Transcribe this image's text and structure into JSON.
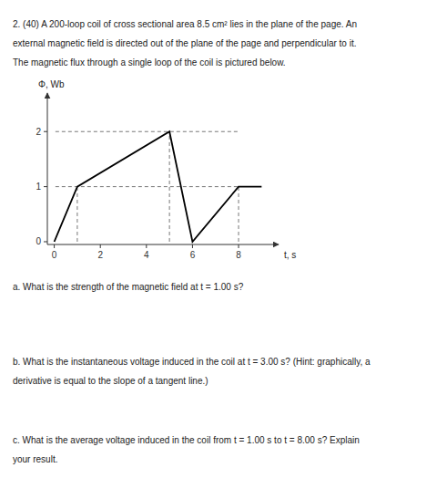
{
  "chart_data": {
    "type": "line",
    "annotations": [
      "2. (40) A 200-loop coil of cross sectional area 8.5 cm² lies in the plane of the page. An",
      "external magnetic field is directed out of the plane of the page and perpendicular to it.",
      "The magnetic flux through a single loop of the coil is pictured below.",
      "a. What is the strength of the magnetic field at t = 1.00 s?",
      "b. What is the instantaneous voltage induced in the coil at t = 3.00 s? (Hint: graphically, a",
      "derivative is equal to the slope of a tangent line.)",
      "c. What is the average voltage induced in the coil from t = 1.00 s to t = 8.00 s? Explain",
      "your result."
    ],
    "x_label": "t, s",
    "y_label": "Φ, Wb",
    "x": [
      0,
      1,
      5,
      6,
      8,
      9
    ],
    "values": [
      0,
      1,
      2,
      0,
      1,
      1
    ],
    "color": "#000000",
    "h_lines": [
      {
        "y": 2,
        "x_start": 0.05,
        "x_end": 8.0,
        "color": "#777777",
        "line_style": "dashed"
      },
      {
        "y": 1,
        "x_start": 0.05,
        "x_end": 8.0,
        "color": "#777777",
        "line_style": "dashed"
      }
    ],
    "v_lines": [
      {
        "x": 1,
        "y_start": 0,
        "y_end": 1,
        "color": "#777777",
        "line_style": "dashed"
      },
      {
        "x": 5,
        "y_start": 0,
        "y_end": 2,
        "color": "#777777",
        "line_style": "dashed"
      },
      {
        "x": 8,
        "y_start": 0,
        "y_end": 1,
        "color": "#777777",
        "line_style": "dashed"
      }
    ],
    "xlim": [
      -0.3,
      9.5
    ],
    "ylim": [
      -0.05,
      2.6
    ],
    "xticks": [
      0,
      2,
      4,
      6,
      8
    ],
    "yticks": [
      0,
      1,
      2
    ],
    "grid": false
  }
}
